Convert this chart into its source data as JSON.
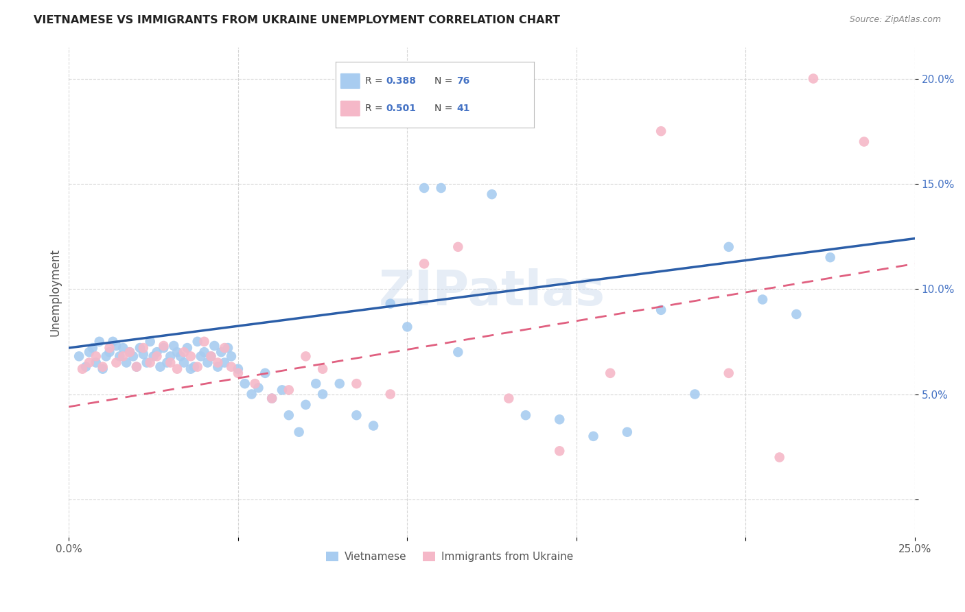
{
  "title": "VIETNAMESE VS IMMIGRANTS FROM UKRAINE UNEMPLOYMENT CORRELATION CHART",
  "source": "Source: ZipAtlas.com",
  "ylabel": "Unemployment",
  "xlim": [
    0.0,
    0.25
  ],
  "ylim": [
    -0.018,
    0.215
  ],
  "blue_color": "#A8CCF0",
  "pink_color": "#F5B8C8",
  "line_blue": "#2B5EA8",
  "line_pink": "#E06080",
  "blue_intercept": 0.072,
  "blue_slope": 0.208,
  "pink_intercept": 0.044,
  "pink_slope": 0.272,
  "blue_x": [
    0.003,
    0.005,
    0.006,
    0.007,
    0.008,
    0.009,
    0.01,
    0.011,
    0.012,
    0.013,
    0.014,
    0.015,
    0.016,
    0.017,
    0.018,
    0.019,
    0.02,
    0.021,
    0.022,
    0.023,
    0.024,
    0.025,
    0.026,
    0.027,
    0.028,
    0.029,
    0.03,
    0.031,
    0.032,
    0.033,
    0.034,
    0.035,
    0.036,
    0.037,
    0.038,
    0.039,
    0.04,
    0.041,
    0.042,
    0.043,
    0.044,
    0.045,
    0.046,
    0.047,
    0.048,
    0.05,
    0.052,
    0.054,
    0.056,
    0.058,
    0.06,
    0.063,
    0.065,
    0.068,
    0.07,
    0.073,
    0.075,
    0.08,
    0.085,
    0.09,
    0.095,
    0.1,
    0.105,
    0.11,
    0.115,
    0.125,
    0.135,
    0.145,
    0.155,
    0.165,
    0.175,
    0.185,
    0.195,
    0.205,
    0.215,
    0.225
  ],
  "blue_y": [
    0.068,
    0.063,
    0.07,
    0.072,
    0.065,
    0.075,
    0.062,
    0.068,
    0.07,
    0.075,
    0.073,
    0.068,
    0.072,
    0.065,
    0.07,
    0.068,
    0.063,
    0.072,
    0.069,
    0.065,
    0.075,
    0.068,
    0.07,
    0.063,
    0.072,
    0.065,
    0.068,
    0.073,
    0.07,
    0.068,
    0.065,
    0.072,
    0.062,
    0.063,
    0.075,
    0.068,
    0.07,
    0.065,
    0.068,
    0.073,
    0.063,
    0.07,
    0.065,
    0.072,
    0.068,
    0.062,
    0.055,
    0.05,
    0.053,
    0.06,
    0.048,
    0.052,
    0.04,
    0.032,
    0.045,
    0.055,
    0.05,
    0.055,
    0.04,
    0.035,
    0.093,
    0.082,
    0.148,
    0.148,
    0.07,
    0.145,
    0.04,
    0.038,
    0.03,
    0.032,
    0.09,
    0.05,
    0.12,
    0.095,
    0.088,
    0.115
  ],
  "pink_x": [
    0.004,
    0.006,
    0.008,
    0.01,
    0.012,
    0.014,
    0.016,
    0.018,
    0.02,
    0.022,
    0.024,
    0.026,
    0.028,
    0.03,
    0.032,
    0.034,
    0.036,
    0.038,
    0.04,
    0.042,
    0.044,
    0.046,
    0.048,
    0.05,
    0.055,
    0.06,
    0.065,
    0.07,
    0.075,
    0.085,
    0.095,
    0.105,
    0.115,
    0.13,
    0.145,
    0.16,
    0.175,
    0.195,
    0.21,
    0.22,
    0.235
  ],
  "pink_y": [
    0.062,
    0.065,
    0.068,
    0.063,
    0.072,
    0.065,
    0.068,
    0.07,
    0.063,
    0.072,
    0.065,
    0.068,
    0.073,
    0.065,
    0.062,
    0.07,
    0.068,
    0.063,
    0.075,
    0.068,
    0.065,
    0.072,
    0.063,
    0.06,
    0.055,
    0.048,
    0.052,
    0.068,
    0.062,
    0.055,
    0.05,
    0.112,
    0.12,
    0.048,
    0.023,
    0.06,
    0.175,
    0.06,
    0.02,
    0.2,
    0.17
  ]
}
